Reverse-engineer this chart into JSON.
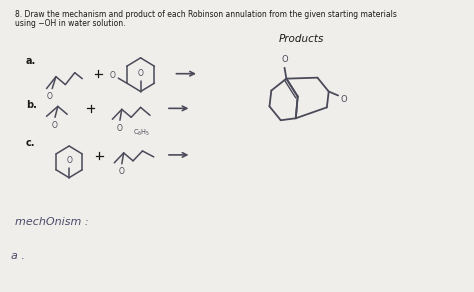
{
  "title_line1": "8. Draw the mechanism and product of each Robinson annulation from the given starting materials",
  "title_line2": "using −OH in water solution.",
  "products_label": "Products",
  "bottom_label1": "mechOnism :",
  "bottom_label2": "a .",
  "bg_color": "#f0eeea",
  "text_color": "#1a1a1a",
  "sketch_color": "#4a4a5a",
  "figsize": [
    4.74,
    2.92
  ],
  "dpi": 100
}
